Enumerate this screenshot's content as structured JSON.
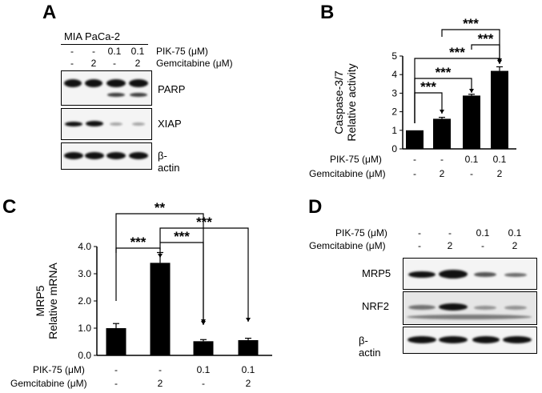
{
  "panelA": {
    "label": "A",
    "cell_line": "MIA PaCa-2",
    "row1_label": "PIK-75 (μM)",
    "row2_label": "Gemcitabine (μM)",
    "pik75": [
      "-",
      "-",
      "0.1",
      "0.1"
    ],
    "gemcitabine": [
      "-",
      "2",
      "-",
      "2"
    ],
    "blots": [
      "PARP",
      "XIAP",
      "β-actin"
    ]
  },
  "panelB": {
    "label": "B",
    "row1_label": "PIK-75 (μM)",
    "row2_label": "Gemcitabine (μM)",
    "pik75": [
      "-",
      "-",
      "0.1",
      "0.1"
    ],
    "gemcitabine": [
      "-",
      "2",
      "-",
      "2"
    ],
    "sig": "***"
  },
  "panelC": {
    "label": "C",
    "row1_label": "PIK-75 (μM)",
    "row2_label": "Gemcitabine (μM)",
    "pik75": [
      "-",
      "-",
      "0.1",
      "0.1"
    ],
    "gemcitabine": [
      "-",
      "2",
      "-",
      "2"
    ],
    "sig3": "***",
    "sig2": "**"
  },
  "panelD": {
    "label": "D",
    "row1_label": "PIK-75 (μM)",
    "row2_label": "Gemcitabine (μM)",
    "pik75": [
      "-",
      "-",
      "0.1",
      "0.1"
    ],
    "gemcitabine": [
      "-",
      "2",
      "-",
      "2"
    ],
    "blots": [
      "MRP5",
      "NRF2",
      "β-actin"
    ]
  },
  "chart_data": [
    {
      "type": "bar",
      "panel": "B",
      "categories": [
        "-/-",
        "-/2",
        "0.1/-",
        "0.1/2"
      ],
      "values": [
        1.0,
        1.62,
        2.87,
        4.2
      ],
      "errors": [
        0.0,
        0.08,
        0.07,
        0.22
      ],
      "ylabel": "Caspase-3/7\nRelative activity",
      "ylabel_lines": [
        "Caspase-3/7",
        "Relative activity"
      ],
      "ylim": [
        0,
        5
      ],
      "yticks": [
        "0",
        "1",
        "2",
        "3",
        "4",
        "5"
      ],
      "comparisons": [
        [
          0,
          1,
          "***"
        ],
        [
          0,
          2,
          "***"
        ],
        [
          0,
          3,
          "***"
        ],
        [
          1,
          3,
          "***"
        ],
        [
          2,
          3,
          "***"
        ]
      ],
      "grid": false
    },
    {
      "type": "bar",
      "panel": "C",
      "categories": [
        "-/-",
        "-/2",
        "0.1/-",
        "0.1/2"
      ],
      "values": [
        1.0,
        3.4,
        0.52,
        0.56
      ],
      "errors": [
        0.17,
        0.38,
        0.06,
        0.07
      ],
      "ylabel": "MRP5\nRelative mRNA",
      "ylabel_lines": [
        "MRP5",
        "Relative mRNA"
      ],
      "ylim": [
        0,
        4
      ],
      "yticks": [
        "0.0",
        "1.0",
        "2.0",
        "3.0",
        "4.0"
      ],
      "comparisons": [
        [
          0,
          1,
          "***"
        ],
        [
          0,
          2,
          "**"
        ],
        [
          1,
          2,
          "***"
        ],
        [
          1,
          3,
          "***"
        ]
      ],
      "grid": false
    }
  ]
}
